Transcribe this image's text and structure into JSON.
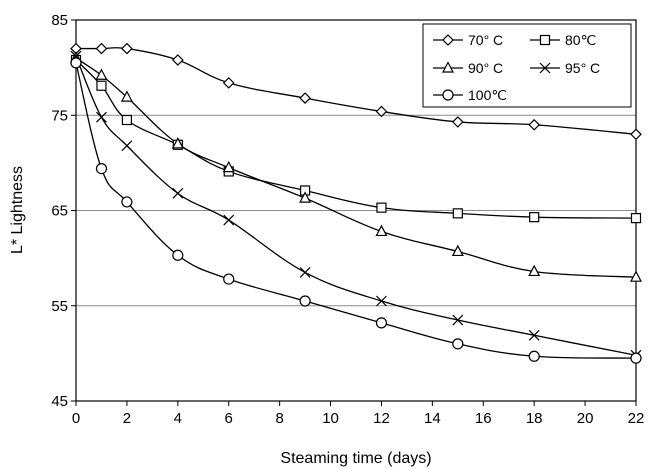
{
  "chart_data": {
    "type": "line",
    "title": "",
    "xlabel": "Steaming time (days)",
    "ylabel": "L* Lightness",
    "xlim": [
      0,
      22
    ],
    "ylim": [
      45,
      85
    ],
    "xticks": [
      0,
      2,
      4,
      6,
      8,
      10,
      12,
      14,
      16,
      18,
      20,
      22
    ],
    "yticks": [
      45,
      55,
      65,
      75,
      85
    ],
    "grid": "horizontal",
    "legend_position": "top-right",
    "x": [
      0,
      1,
      2,
      4,
      6,
      9,
      12,
      15,
      18,
      22
    ],
    "series": [
      {
        "name": "70° C",
        "marker": "diamond",
        "values": [
          82.0,
          82.0,
          82.0,
          80.8,
          78.4,
          76.8,
          75.4,
          74.3,
          74.0,
          73.0
        ]
      },
      {
        "name": "80℃",
        "marker": "square",
        "values": [
          80.8,
          78.1,
          74.5,
          71.9,
          69.1,
          67.1,
          65.3,
          64.7,
          64.3,
          64.2
        ]
      },
      {
        "name": "90° C",
        "marker": "triangle",
        "values": [
          81.0,
          79.2,
          76.9,
          72.0,
          69.5,
          66.3,
          62.8,
          60.7,
          58.6,
          58.0
        ]
      },
      {
        "name": "95° C",
        "marker": "x",
        "values": [
          81.2,
          74.8,
          71.8,
          66.8,
          64.0,
          58.5,
          55.5,
          53.5,
          51.9,
          49.8
        ]
      },
      {
        "name": "100℃",
        "marker": "circle",
        "values": [
          80.5,
          69.4,
          65.9,
          60.3,
          57.8,
          55.5,
          53.2,
          51.0,
          49.7,
          49.5
        ]
      }
    ]
  }
}
